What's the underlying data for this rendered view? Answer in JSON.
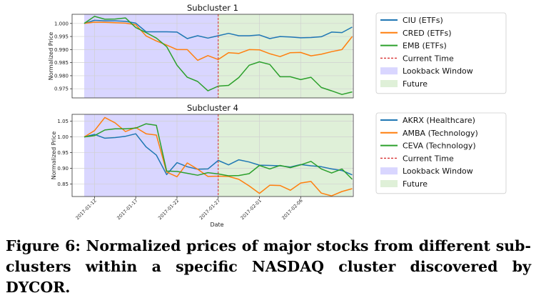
{
  "chart_data": [
    {
      "type": "line",
      "title": "Subcluster 1",
      "xlabel": "",
      "ylabel": "Normalized Price",
      "ylim": [
        0.9715,
        1.0035
      ],
      "yticks": [
        "1.000",
        "0.995",
        "0.990",
        "0.985",
        "0.980",
        "0.975"
      ],
      "ytick_values": [
        1.0,
        0.995,
        0.99,
        0.985,
        0.98,
        0.975
      ],
      "x_index_range": [
        0,
        26
      ],
      "current_time_index": 13,
      "series": [
        {
          "name": "CIU (ETFs)",
          "color": "#1f77b4",
          "values": [
            1.0,
            1.0012,
            1.001,
            1.001,
            1.0008,
            1.0001,
            0.9968,
            0.9968,
            0.9968,
            0.9967,
            0.9942,
            0.9953,
            0.9944,
            0.9953,
            0.9962,
            0.9953,
            0.9953,
            0.9956,
            0.9942,
            0.995,
            0.9948,
            0.9945,
            0.9946,
            0.9949,
            0.9967,
            0.9965,
            0.9986
          ]
        },
        {
          "name": "CRED (ETFs)",
          "color": "#ff7f0e",
          "values": [
            1.0,
            1.0005,
            1.0004,
            1.0003,
            1.0001,
            0.9995,
            0.9952,
            0.9933,
            0.9917,
            0.99,
            0.99,
            0.9859,
            0.9877,
            0.9862,
            0.9888,
            0.9885,
            0.99,
            0.9899,
            0.9884,
            0.9873,
            0.9888,
            0.9889,
            0.9876,
            0.9882,
            0.9892,
            0.99,
            0.995
          ]
        },
        {
          "name": "EMB (ETFs)",
          "color": "#2ca02c",
          "values": [
            1.0,
            1.0027,
            1.0016,
            1.0017,
            1.0021,
            0.9984,
            0.9965,
            0.9944,
            0.9911,
            0.984,
            0.9794,
            0.9778,
            0.9742,
            0.976,
            0.9763,
            0.9793,
            0.984,
            0.9853,
            0.9843,
            0.9796,
            0.9796,
            0.9785,
            0.9794,
            0.9755,
            0.9742,
            0.9728,
            0.9738
          ]
        }
      ],
      "annotations": [
        "Current Time",
        "Lookback Window",
        "Future"
      ]
    },
    {
      "type": "line",
      "title": "Subcluster 4",
      "xlabel": "Date",
      "ylabel": "Normalized Price",
      "ylim": [
        0.81,
        1.072
      ],
      "yticks": [
        "1.05",
        "1.00",
        "0.95",
        "0.90",
        "0.85"
      ],
      "ytick_values": [
        1.05,
        1.0,
        0.95,
        0.9,
        0.85
      ],
      "x_index_range": [
        0,
        26
      ],
      "current_time_index": 13,
      "xticks": [
        "2017-01-12",
        "2017-01-17",
        "2017-01-22",
        "2017-01-27",
        "2017-02-01",
        "2017-02-06"
      ],
      "xtick_index": [
        1.0,
        5.0,
        9.0,
        13.0,
        17.0,
        21.0
      ],
      "series": [
        {
          "name": "AKRX (Healthcare)",
          "color": "#1f77b4",
          "values": [
            1.0,
            1.008,
            0.996,
            0.998,
            1.002,
            1.01,
            0.968,
            0.942,
            0.88,
            0.918,
            0.905,
            0.897,
            0.898,
            0.925,
            0.911,
            0.927,
            0.92,
            0.91,
            0.909,
            0.908,
            0.904,
            0.912,
            0.908,
            0.905,
            0.898,
            0.893,
            0.879
          ]
        },
        {
          "name": "AMBA (Technology)",
          "color": "#ff7f0e",
          "values": [
            1.0,
            1.02,
            1.062,
            1.045,
            1.017,
            1.03,
            1.01,
            1.006,
            0.888,
            0.873,
            0.917,
            0.897,
            0.874,
            0.875,
            0.874,
            0.865,
            0.844,
            0.82,
            0.846,
            0.845,
            0.83,
            0.853,
            0.858,
            0.821,
            0.812,
            0.826,
            0.835
          ]
        },
        {
          "name": "CEVA (Technology)",
          "color": "#2ca02c",
          "values": [
            1.0,
            1.004,
            1.022,
            1.026,
            1.026,
            1.028,
            1.042,
            1.037,
            0.891,
            0.89,
            0.884,
            0.878,
            0.886,
            0.882,
            0.876,
            0.877,
            0.883,
            0.909,
            0.898,
            0.909,
            0.902,
            0.911,
            0.922,
            0.898,
            0.885,
            0.898,
            0.865
          ]
        }
      ],
      "annotations": [
        "Current Time",
        "Lookback Window",
        "Future"
      ]
    }
  ],
  "legend": {
    "current_time": "Current Time",
    "lookback": "Lookback Window",
    "future": "Future",
    "current_time_color": "#d62728",
    "lookback_color": "#d9d6ff",
    "future_color": "#dff0d8"
  },
  "caption": "Figure 6: Normalized prices of major stocks from different sub-clusters within a specific NASDAQ cluster discovered by DYCOR."
}
